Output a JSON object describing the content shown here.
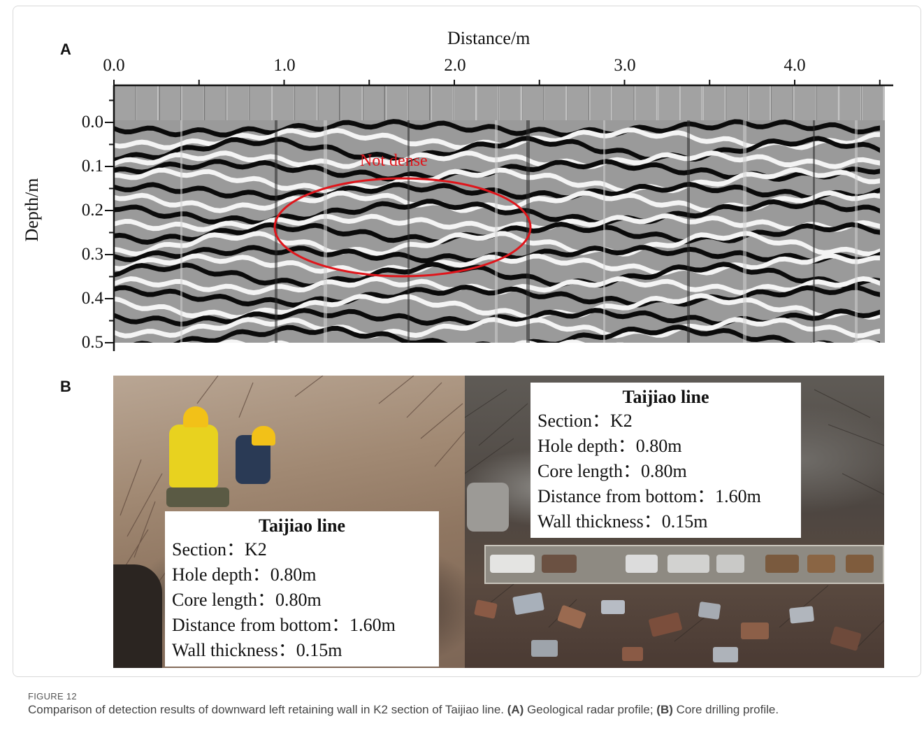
{
  "panel_a": {
    "letter": "A",
    "x_axis_title": "Distance/m",
    "y_axis_title": "Depth/m",
    "x_ticks": [
      "0.0",
      "1.0",
      "2.0",
      "3.0",
      "4.0"
    ],
    "y_ticks": [
      "0.0",
      "0.1",
      "0.2",
      "0.3",
      "0.4",
      "0.5"
    ],
    "annotation": "Not dense",
    "annotation_color": "#e0151b"
  },
  "chart_data": {
    "type": "heatmap",
    "description_axes": {
      "x": "Distance/m",
      "y": "Depth/m"
    },
    "xlim": [
      0.0,
      4.5
    ],
    "ylim": [
      0.5,
      -0.08
    ],
    "x_tick_values": [
      0.0,
      1.0,
      2.0,
      3.0,
      4.0
    ],
    "y_tick_values": [
      0.0,
      0.1,
      0.2,
      0.3,
      0.4,
      0.5
    ],
    "highlight_region": {
      "label": "Not dense",
      "x_range": [
        0.95,
        2.45
      ],
      "depth_range": [
        0.13,
        0.35
      ],
      "shape": "ellipse",
      "color": "#e0151b"
    }
  },
  "panel_b": {
    "letter": "B",
    "left_box": {
      "title": "Taijiao line",
      "lines": [
        "Section：K2",
        "Hole depth：0.80m",
        "Core length：0.80m",
        "Distance from bottom：1.60m",
        "Wall thickness：0.15m"
      ]
    },
    "right_box": {
      "title": "Taijiao line",
      "lines": [
        "Section：K2",
        "Hole depth：0.80m",
        "Core length：0.80m",
        "Distance from bottom：1.60m",
        "Wall thickness：0.15m"
      ]
    }
  },
  "caption": {
    "figure_label": "FIGURE 12",
    "text_main": "Comparison of detection results of downward left retaining wall in K2 section of Taijiao line. ",
    "label_a": "(A)",
    "text_a": " Geological radar profile; ",
    "label_b": "(B)",
    "text_b": " Core drilling profile."
  }
}
